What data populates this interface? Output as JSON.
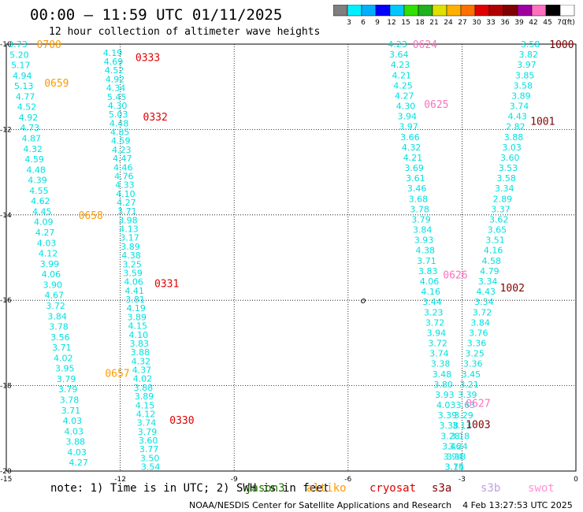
{
  "header": {
    "title": "00:00 – 11:59 UTC 01/11/2025",
    "subtitle": "12 hour collection of altimeter wave heights"
  },
  "colorbar": {
    "labels": [
      "3",
      "6",
      "9",
      "12",
      "15",
      "18",
      "21",
      "24",
      "27",
      "30",
      "33",
      "36",
      "39",
      "42",
      "45",
      "70"
    ],
    "unit": "(ft)",
    "colors": [
      "#7f7f7f",
      "#00f0ff",
      "#00b0ff",
      "#0000ff",
      "#00c8ff",
      "#30e000",
      "#20b020",
      "#e0e000",
      "#ffb000",
      "#ff7000",
      "#e00000",
      "#b00000",
      "#800000",
      "#a000a0",
      "#ff70c0",
      "#000000",
      "#ffffff"
    ]
  },
  "axes": {
    "x_ticks": [
      "-15",
      "-12",
      "-9",
      "-6",
      "-3",
      "0"
    ],
    "y_ticks": [
      "-10",
      "-12",
      "-14",
      "-16",
      "-18",
      "-20"
    ]
  },
  "chart_data": {
    "type": "scatter",
    "xlim": [
      -15,
      0
    ],
    "ylim": [
      -20,
      -10
    ],
    "grid": true,
    "tracks": [
      {
        "color": "#00e0e0",
        "x0": -14.7,
        "y0": -10.0,
        "x1": -13.1,
        "y1": -19.8,
        "values": [
          "3.73",
          "5.20",
          "5.17",
          "4.94",
          "5.13",
          "4.77",
          "4.52",
          "4.92",
          "4.73",
          "4.87",
          "4.32",
          "4.59",
          "4.48",
          "4.39",
          "4.55",
          "4.62",
          "4.45",
          "4.09",
          "4.27",
          "4.03",
          "4.12",
          "3.99",
          "4.06",
          "3.90",
          "4.67",
          "3.72",
          "3.84",
          "3.78",
          "3.56",
          "3.71",
          "4.02",
          "3.95",
          "3.79",
          "3.79",
          "3.78",
          "3.71",
          "4.03",
          "4.03",
          "3.88",
          "4.03",
          "4.27"
        ]
      },
      {
        "color": "#00e0e0",
        "x0": -12.2,
        "y0": -10.2,
        "x1": -11.2,
        "y1": -19.9,
        "values": [
          "4.19",
          "4.69",
          "4.52",
          "4.92",
          "4.34",
          "5.45",
          "4.30",
          "5.03",
          "4.48",
          "4.85",
          "4.59",
          "4.23",
          "4.47",
          "4.46",
          "4.76",
          "4.33",
          "4.10",
          "4.27",
          "3.71",
          "3.98",
          "4.13",
          "3.17",
          "3.89",
          "4.38",
          "3.25",
          "3.59",
          "4.06",
          "4.41",
          "3.81",
          "4.19",
          "3.89",
          "4.15",
          "4.10",
          "3.83",
          "3.88",
          "4.32",
          "4.37",
          "4.02",
          "3.88",
          "3.89",
          "4.15",
          "4.12",
          "3.74",
          "3.79",
          "3.60",
          "3.77",
          "3.50",
          "3.54"
        ]
      },
      {
        "color": "#00e0e0",
        "x0": -4.7,
        "y0": -10.0,
        "x1": -3.2,
        "y1": -19.9,
        "values": [
          "4.23",
          "3.64",
          "4.23",
          "4.21",
          "4.25",
          "4.27",
          "4.30",
          "3.94",
          "3.97",
          "3.66",
          "4.32",
          "4.21",
          "3.69",
          "3.61",
          "3.46",
          "3.68",
          "3.78",
          "3.79",
          "3.84",
          "3.93",
          "4.38",
          "3.71",
          "3.83",
          "4.06",
          "4.16",
          "3.44",
          "3.23",
          "3.72",
          "3.94",
          "3.72",
          "3.74",
          "3.38",
          "3.48",
          "3.80",
          "3.93",
          "4.03",
          "3.39",
          "3.38",
          "3.28",
          "3.46",
          "3.94",
          "3.75"
        ]
      },
      {
        "color": "#00e0e0",
        "x0": -1.2,
        "y0": -10.0,
        "x1": -3.2,
        "y1": -19.9,
        "values": [
          "3.58",
          "3.82",
          "3.97",
          "3.85",
          "3.58",
          "3.89",
          "3.74",
          "4.43",
          "2.82",
          "3.88",
          "3.03",
          "3.60",
          "3.53",
          "3.58",
          "3.34",
          "2.89",
          "3.37",
          "3.62",
          "3.65",
          "3.51",
          "4.16",
          "4.58",
          "4.79",
          "3.34",
          "4.43",
          "3.34",
          "3.72",
          "3.84",
          "3.76",
          "3.36",
          "3.25",
          "3.36",
          "3.45",
          "3.21",
          "3.39",
          "3.63",
          "3.29",
          "3.13",
          "3.18",
          "3.24",
          "3.18",
          "3.14"
        ]
      }
    ],
    "time_labels": [
      {
        "text": "0700",
        "color": "#ff9900",
        "x": -14.2,
        "y": -10.0
      },
      {
        "text": "0659",
        "color": "#ff9900",
        "x": -14.0,
        "y": -10.9
      },
      {
        "text": "0658",
        "color": "#ff9900",
        "x": -13.1,
        "y": -14.0
      },
      {
        "text": "0657",
        "color": "#ff9900",
        "x": -12.4,
        "y": -17.7
      },
      {
        "text": "0333",
        "color": "#e00000",
        "x": -11.6,
        "y": -10.3
      },
      {
        "text": "0332",
        "color": "#e00000",
        "x": -11.4,
        "y": -11.7
      },
      {
        "text": "0331",
        "color": "#e00000",
        "x": -11.1,
        "y": -15.6
      },
      {
        "text": "0330",
        "color": "#e00000",
        "x": -10.7,
        "y": -18.8
      },
      {
        "text": "0624",
        "color": "#ff70c0",
        "x": -4.3,
        "y": -10.0
      },
      {
        "text": "0625",
        "color": "#ff70c0",
        "x": -4.0,
        "y": -11.4
      },
      {
        "text": "0626",
        "color": "#ff70c0",
        "x": -3.5,
        "y": -15.4
      },
      {
        "text": "0627",
        "color": "#ff70c0",
        "x": -2.9,
        "y": -18.4
      },
      {
        "text": "1000",
        "color": "#800000",
        "x": -0.7,
        "y": -10.0
      },
      {
        "text": "1001",
        "color": "#800000",
        "x": -1.2,
        "y": -11.8
      },
      {
        "text": "1002",
        "color": "#800000",
        "x": -2.0,
        "y": -15.7
      },
      {
        "text": "1003",
        "color": "#800000",
        "x": -2.9,
        "y": -18.9
      }
    ],
    "markers": [
      {
        "text": "o",
        "x": -5.6,
        "y": -16.0,
        "color": "#000000"
      }
    ]
  },
  "footer": {
    "note": "note: 1) Time is in UTC; 2) SWH is in feet",
    "satellites": [
      {
        "name": "jason3",
        "color": "#207000"
      },
      {
        "name": "altiko",
        "color": "#ff9900"
      },
      {
        "name": "cryosat",
        "color": "#e00000"
      },
      {
        "name": "s3a",
        "color": "#800000"
      },
      {
        "name": "s3b",
        "color": "#c0a0e0"
      },
      {
        "name": "swot",
        "color": "#ff90d0"
      }
    ],
    "credit": "NOAA/NESDIS Center for Satellite Applications and Research    4 Feb 13:27:53 UTC 2025"
  }
}
